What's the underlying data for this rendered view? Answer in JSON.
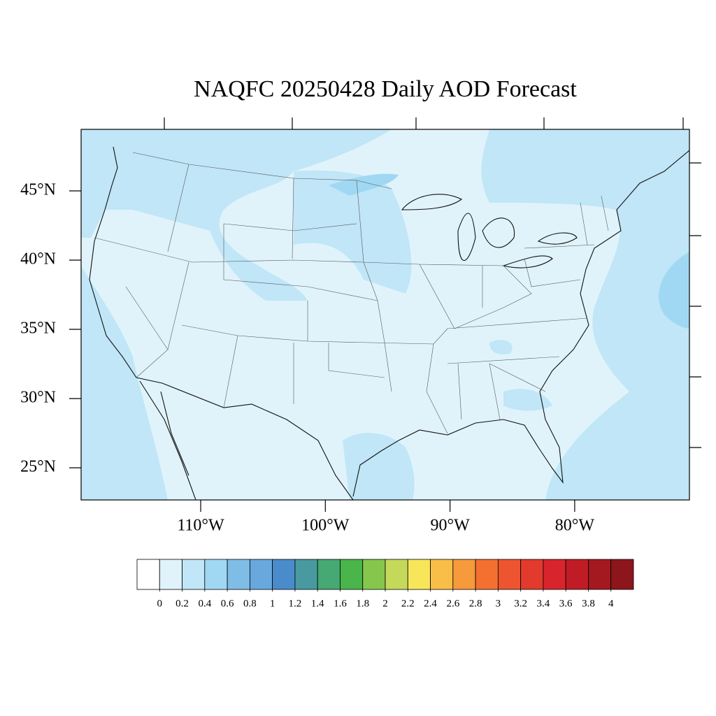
{
  "title": "NAQFC 20250428 Daily AOD Forecast",
  "map": {
    "lat_ticks": [
      {
        "value": 45,
        "label": "45°N"
      },
      {
        "value": 40,
        "label": "40°N"
      },
      {
        "value": 35,
        "label": "35°N"
      },
      {
        "value": 30,
        "label": "30°N"
      },
      {
        "value": 25,
        "label": "25°N"
      }
    ],
    "lon_ticks": [
      {
        "value": -110,
        "label": "110°W"
      },
      {
        "value": -100,
        "label": "100°W"
      },
      {
        "value": -90,
        "label": "90°W"
      },
      {
        "value": -80,
        "label": "80°W"
      }
    ]
  },
  "colorbar": {
    "levels": [
      0,
      0.2,
      0.4,
      0.6,
      0.8,
      1,
      1.2,
      1.4,
      1.6,
      1.8,
      2,
      2.2,
      2.4,
      2.6,
      2.8,
      3,
      3.2,
      3.4,
      3.6,
      3.8,
      4
    ],
    "colors": [
      "#ffffff",
      "#e0f3fb",
      "#c0e6f7",
      "#a0d8f3",
      "#80bde6",
      "#68a8dc",
      "#4a8ccb",
      "#489aa0",
      "#46a873",
      "#4ab54a",
      "#86c64d",
      "#c4d95a",
      "#f8e65a",
      "#f8be48",
      "#f79a3c",
      "#f47030",
      "#ec5530",
      "#e23a2c",
      "#d8242c",
      "#c01c26",
      "#a4191f",
      "#8c161c"
    ]
  }
}
